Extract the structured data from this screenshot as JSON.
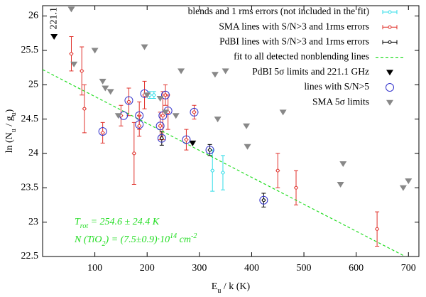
{
  "chart_data": {
    "type": "scatter",
    "xlabel": [
      {
        "text": "E"
      },
      {
        "text": "u",
        "shift": "sub"
      },
      {
        "text": " / k (K)"
      }
    ],
    "ylabel": [
      {
        "text": "ln (N"
      },
      {
        "text": "u",
        "shift": "sub"
      },
      {
        "text": " / g"
      },
      {
        "text": "u",
        "shift": "sub"
      },
      {
        "text": ")"
      }
    ],
    "xlim": [
      0,
      720
    ],
    "ylim": [
      22.5,
      26.15
    ],
    "xticks": [
      100,
      200,
      300,
      400,
      500,
      600,
      700
    ],
    "yticks": [
      22.5,
      23,
      23.5,
      24,
      24.5,
      25,
      25.5,
      26
    ],
    "legend": "upper right",
    "series": [
      {
        "name": "blends and 1 rms errors (not included in the fit)",
        "color": "#33dde8",
        "marker": "errorbar",
        "x": [
          205,
          213,
          325,
          345
        ],
        "values": [
          24.85,
          24.85,
          23.75,
          23.72
        ],
        "errors": [
          0.05,
          0.05,
          0.3,
          0.25
        ]
      },
      {
        "name": "SMA lines with S/N>3 and 1rms errors",
        "color": "#e0302a",
        "marker": "errorbar",
        "x": [
          55,
          75,
          80,
          115,
          150,
          165,
          175,
          185,
          185,
          195,
          225,
          230,
          235,
          240,
          275,
          290,
          450,
          485,
          640
        ],
        "values": [
          25.45,
          25.2,
          24.65,
          24.3,
          24.55,
          24.75,
          24.0,
          24.55,
          24.4,
          24.85,
          24.4,
          24.55,
          24.85,
          24.6,
          24.2,
          24.6,
          23.75,
          23.5,
          22.9
        ],
        "errors": [
          0.25,
          0.35,
          0.35,
          0.15,
          0.15,
          0.2,
          0.45,
          0.2,
          0.15,
          0.2,
          0.2,
          0.35,
          0.15,
          0.25,
          0.15,
          0.1,
          0.25,
          0.25,
          0.25
        ]
      },
      {
        "name": "PdBI lines with S/N>3 and 1rms errors",
        "color": "#000000",
        "marker": "errorbar",
        "x": [
          228,
          320,
          423
        ],
        "values": [
          24.22,
          24.05,
          23.32
        ],
        "errors": [
          0.1,
          0.08,
          0.1
        ]
      },
      {
        "name": "fit to all detected nonblending lines",
        "color": "#22dd22",
        "marker": "line",
        "x": [
          0,
          694
        ],
        "values": [
          25.22,
          22.5
        ]
      },
      {
        "name": "PdBI 5σ limits and 221.1 GHz",
        "color": "#000000",
        "marker": "triangle-down",
        "x": [
          22,
          287
        ],
        "values": [
          25.7,
          24.15
        ]
      },
      {
        "name": "lines with S/N>5",
        "color": "#3333cc",
        "marker": "circle",
        "x": [
          115,
          155,
          165,
          185,
          185,
          195,
          225,
          230,
          235,
          240,
          275,
          290,
          228,
          320,
          423
        ],
        "values": [
          24.32,
          24.55,
          24.77,
          24.55,
          24.42,
          24.87,
          24.4,
          24.55,
          24.85,
          24.62,
          24.2,
          24.6,
          24.22,
          24.05,
          23.32
        ]
      },
      {
        "name": "SMA 5σ limits",
        "color": "#888888",
        "marker": "triangle-down",
        "x": [
          55,
          60,
          100,
          115,
          120,
          130,
          145,
          195,
          200,
          225,
          235,
          255,
          265,
          330,
          335,
          350,
          390,
          392,
          460,
          570,
          575,
          690,
          700
        ],
        "values": [
          26.1,
          25.3,
          25.5,
          25.05,
          24.95,
          24.9,
          24.55,
          25.55,
          24.85,
          24.8,
          24.6,
          24.55,
          25.2,
          25.15,
          24.5,
          25.2,
          24.4,
          24.1,
          24.6,
          23.55,
          23.85,
          23.5,
          23.6
        ]
      }
    ],
    "annotations": [
      {
        "text": "221.1",
        "x": 22,
        "y": 25.7
      }
    ],
    "fit_text": [
      [
        {
          "text": "T"
        },
        {
          "text": "rot",
          "shift": "sub"
        },
        {
          "text": " = 254.6 ± 24.4 K"
        }
      ],
      [
        {
          "text": "N"
        },
        {
          "text": " (TiO"
        },
        {
          "text": "2",
          "shift": "sub"
        },
        {
          "text": ") = (7.5±0.9)·10"
        },
        {
          "text": "14",
          "shift": "super"
        },
        {
          "text": " cm"
        },
        {
          "text": "-2",
          "shift": "super"
        }
      ]
    ],
    "fit_text_color": "#22dd22"
  }
}
